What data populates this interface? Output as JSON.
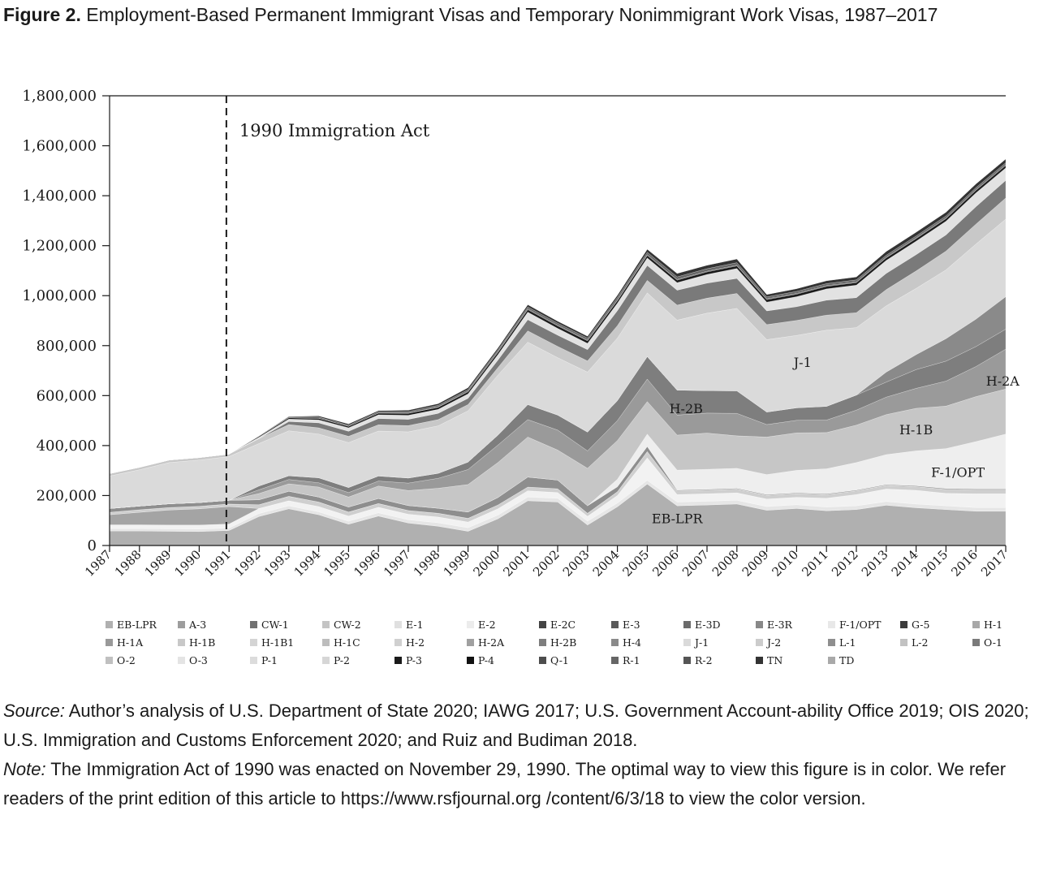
{
  "figure": {
    "label": "Figure 2.",
    "title": "Employment-Based Permanent Immigrant Visas and Temporary Nonimmigrant Work Visas, 1987–2017"
  },
  "chart_data": {
    "type": "area",
    "stacked": true,
    "categories": [
      "1987",
      "1988",
      "1989",
      "1990",
      "1991",
      "1992",
      "1993",
      "1994",
      "1995",
      "1996",
      "1997",
      "1998",
      "1999",
      "2000",
      "2001",
      "2002",
      "2003",
      "2004",
      "2005",
      "2006",
      "2007",
      "2008",
      "2009",
      "2010",
      "2011",
      "2012",
      "2013",
      "2014",
      "2015",
      "2016",
      "2017"
    ],
    "ylim": [
      0,
      1800000
    ],
    "yticks": [
      "0",
      "200,000",
      "400,000",
      "600,000",
      "800,000",
      "1,000,000",
      "1,200,000",
      "1,400,000",
      "1,600,000",
      "1,800,000"
    ],
    "grid": false,
    "legend_position": "bottom",
    "series": [
      {
        "name": "EB-LPR",
        "color": "#b0b0b0",
        "values": [
          58000,
          58000,
          57000,
          56000,
          60000,
          116000,
          147000,
          123000,
          85000,
          118000,
          90000,
          77000,
          57000,
          107000,
          179000,
          174000,
          82000,
          155000,
          246000,
          159000,
          162000,
          166000,
          141000,
          148000,
          139000,
          144000,
          161000,
          151000,
          144000,
          137000,
          137000
        ]
      },
      {
        "name": "E-1",
        "color": "#e6e6e6",
        "values": [
          10000,
          10000,
          10000,
          10000,
          10000,
          12000,
          12000,
          12000,
          12000,
          13000,
          13000,
          14000,
          14000,
          15000,
          15000,
          15000,
          15000,
          15000,
          15000,
          15000,
          15000,
          15000,
          15000,
          15000,
          15000,
          15000,
          15000,
          15000,
          15000,
          15000,
          15000
        ]
      },
      {
        "name": "E-2",
        "color": "#f2f2f2",
        "values": [
          15000,
          15000,
          15000,
          16000,
          16000,
          20000,
          20000,
          21000,
          21000,
          22000,
          22000,
          23000,
          23000,
          25000,
          25000,
          23000,
          20000,
          30000,
          90000,
          30000,
          30000,
          30000,
          30000,
          30000,
          35000,
          45000,
          50000,
          55000,
          50000,
          55000,
          55000
        ]
      },
      {
        "name": "H-1",
        "color": "#a4a4a4",
        "values": [
          40000,
          50000,
          60000,
          65000,
          70000,
          0,
          0,
          0,
          0,
          0,
          0,
          0,
          0,
          0,
          0,
          0,
          0,
          0,
          0,
          0,
          0,
          0,
          0,
          0,
          0,
          0,
          0,
          0,
          0,
          0,
          0
        ]
      },
      {
        "name": "H-2",
        "color": "#cfcfcf",
        "values": [
          10000,
          10000,
          10000,
          10000,
          10000,
          15000,
          18000,
          18000,
          16000,
          15000,
          15000,
          15000,
          15000,
          15000,
          15000,
          15000,
          12000,
          15000,
          25000,
          15000,
          15000,
          15000,
          15000,
          15000,
          15000,
          15000,
          15000,
          15000,
          15000,
          15000,
          15000
        ]
      },
      {
        "name": "E-2C",
        "color": "#444444",
        "values": [
          0,
          0,
          0,
          0,
          0,
          0,
          0,
          0,
          0,
          0,
          0,
          0,
          0,
          0,
          0,
          0,
          0,
          0,
          0,
          0,
          0,
          0,
          0,
          0,
          0,
          0,
          0,
          0,
          1000,
          1000,
          1000
        ]
      },
      {
        "name": "L-1",
        "color": "#8e8e8e",
        "values": [
          15000,
          15000,
          15000,
          15000,
          15000,
          20000,
          20000,
          20000,
          20000,
          20000,
          20000,
          20000,
          25000,
          30000,
          40000,
          35000,
          30000,
          20000,
          20000,
          3000,
          3000,
          3000,
          3000,
          3000,
          3000,
          3000,
          3000,
          3000,
          3000,
          3000,
          3000
        ]
      },
      {
        "name": "F-1/OPT",
        "color": "#eeeeee",
        "values": [
          0,
          0,
          0,
          0,
          0,
          0,
          0,
          0,
          0,
          0,
          0,
          0,
          0,
          0,
          0,
          0,
          0,
          30000,
          50000,
          80000,
          80000,
          80000,
          80000,
          90000,
          100000,
          110000,
          120000,
          140000,
          160000,
          190000,
          220000
        ]
      },
      {
        "name": "H-1B",
        "color": "#c6c6c6",
        "values": [
          0,
          0,
          0,
          0,
          0,
          25000,
          30000,
          40000,
          40000,
          50000,
          60000,
          80000,
          110000,
          140000,
          160000,
          120000,
          150000,
          155000,
          130000,
          140000,
          145000,
          130000,
          150000,
          150000,
          145000,
          150000,
          160000,
          170000,
          170000,
          180000,
          180000
        ]
      },
      {
        "name": "H-2A",
        "color": "#9a9a9a",
        "values": [
          0,
          0,
          0,
          0,
          0,
          15000,
          17000,
          17000,
          18000,
          20000,
          30000,
          40000,
          60000,
          70000,
          70000,
          80000,
          70000,
          80000,
          90000,
          80000,
          80000,
          90000,
          50000,
          50000,
          50000,
          60000,
          70000,
          80000,
          100000,
          120000,
          160000
        ]
      },
      {
        "name": "H-2B",
        "color": "#7e7e7e",
        "values": [
          0,
          0,
          0,
          0,
          0,
          15000,
          15000,
          20000,
          20000,
          20000,
          20000,
          20000,
          30000,
          40000,
          60000,
          60000,
          75000,
          80000,
          90000,
          100000,
          90000,
          90000,
          50000,
          50000,
          55000,
          60000,
          60000,
          75000,
          80000,
          80000,
          80000
        ]
      },
      {
        "name": "H-4",
        "color": "#8a8a8a",
        "values": [
          0,
          0,
          0,
          0,
          0,
          0,
          0,
          0,
          0,
          0,
          0,
          0,
          0,
          0,
          0,
          0,
          0,
          0,
          0,
          0,
          0,
          0,
          0,
          0,
          0,
          0,
          40000,
          60000,
          90000,
          110000,
          130000
        ]
      },
      {
        "name": "J-1",
        "color": "#dadada",
        "values": [
          130000,
          145000,
          165000,
          170000,
          175000,
          170000,
          180000,
          175000,
          180000,
          180000,
          185000,
          190000,
          205000,
          240000,
          250000,
          230000,
          240000,
          250000,
          255000,
          280000,
          310000,
          330000,
          290000,
          290000,
          305000,
          270000,
          265000,
          265000,
          275000,
          300000,
          310000
        ]
      },
      {
        "name": "L-2",
        "color": "#c8c8c8",
        "values": [
          10000,
          10000,
          10000,
          10000,
          10000,
          20000,
          25000,
          25000,
          25000,
          25000,
          25000,
          25000,
          25000,
          30000,
          45000,
          45000,
          45000,
          50000,
          50000,
          60000,
          60000,
          60000,
          60000,
          60000,
          60000,
          60000,
          65000,
          70000,
          75000,
          80000,
          85000
        ]
      },
      {
        "name": "O-1",
        "color": "#7a7a7a",
        "values": [
          0,
          0,
          0,
          0,
          0,
          0,
          12000,
          20000,
          20000,
          25000,
          25000,
          25000,
          25000,
          30000,
          45000,
          45000,
          45000,
          60000,
          60000,
          60000,
          60000,
          60000,
          55000,
          55000,
          60000,
          60000,
          65000,
          65000,
          65000,
          70000,
          70000
        ]
      },
      {
        "name": "P-1",
        "color": "#e2e2e2",
        "values": [
          0,
          0,
          0,
          0,
          0,
          5000,
          10000,
          12000,
          14000,
          15000,
          16000,
          16000,
          18000,
          22000,
          30000,
          27000,
          25000,
          30000,
          30000,
          30000,
          35000,
          40000,
          35000,
          40000,
          45000,
          50000,
          52000,
          54000,
          55000,
          55000,
          50000
        ]
      },
      {
        "name": "P-3",
        "color": "#1a1a1a",
        "values": [
          0,
          0,
          0,
          0,
          0,
          4000,
          5000,
          6000,
          6000,
          7000,
          8000,
          8000,
          8000,
          9000,
          10000,
          10000,
          10000,
          10000,
          10000,
          10000,
          10000,
          10000,
          10000,
          10000,
          10000,
          10000,
          10000,
          10000,
          10000,
          10000,
          10000
        ]
      },
      {
        "name": "Q-1",
        "color": "#4d4d4d",
        "values": [
          0,
          0,
          0,
          0,
          0,
          0,
          0,
          0,
          0,
          0,
          1000,
          2000,
          3000,
          3000,
          3000,
          3000,
          3000,
          3000,
          3000,
          3000,
          3000,
          3000,
          3000,
          3000,
          3000,
          3000,
          3000,
          3000,
          3000,
          3000,
          3000
        ]
      },
      {
        "name": "R-1",
        "color": "#666666",
        "values": [
          0,
          0,
          0,
          0,
          0,
          2000,
          4000,
          5000,
          5000,
          5000,
          6000,
          6000,
          6000,
          7000,
          8000,
          8000,
          8000,
          10000,
          10000,
          10000,
          10000,
          10000,
          8000,
          8000,
          8000,
          8000,
          8000,
          8000,
          8000,
          8000,
          8000
        ]
      },
      {
        "name": "TN",
        "color": "#333333",
        "values": [
          0,
          0,
          0,
          0,
          0,
          0,
          2000,
          5000,
          5000,
          5000,
          6000,
          7000,
          8000,
          8000,
          9000,
          8000,
          8000,
          9000,
          12000,
          14000,
          14000,
          15000,
          10000,
          11000,
          12000,
          12000,
          15000,
          15000,
          15000,
          15000,
          15000
        ]
      },
      {
        "name": "TD",
        "color": "#a9a9a9",
        "values": [
          0,
          0,
          0,
          0,
          0,
          0,
          0,
          0,
          0,
          0,
          0,
          0,
          0,
          0,
          0,
          0,
          0,
          0,
          0,
          0,
          0,
          0,
          0,
          0,
          0,
          0,
          0,
          0,
          0,
          0,
          0
        ]
      }
    ],
    "labels": [
      {
        "text": "EB-LPR",
        "x": "2006",
        "y": 90000
      },
      {
        "text": "F-1/OPT",
        "x": "2015.4",
        "y": 275000
      },
      {
        "text": "H-1B",
        "x": "2014",
        "y": 445000
      },
      {
        "text": "H-2A",
        "x": "2016.9",
        "y": 640000
      },
      {
        "text": "H-2B",
        "x": "2006.3",
        "y": 530000
      },
      {
        "text": "J-1",
        "x": "2010.2",
        "y": 715000
      }
    ],
    "annotation": {
      "text": "1990 Immigration Act",
      "x": "1990.91"
    },
    "legend_items": [
      {
        "name": "EB-LPR",
        "color": "#b0b0b0"
      },
      {
        "name": "A-3",
        "color": "#9d9d9d"
      },
      {
        "name": "CW-1",
        "color": "#717171"
      },
      {
        "name": "CW-2",
        "color": "#c4c4c4"
      },
      {
        "name": "E-1",
        "color": "#e0e0e0"
      },
      {
        "name": "E-2",
        "color": "#ececec"
      },
      {
        "name": "E-2C",
        "color": "#444444"
      },
      {
        "name": "E-3",
        "color": "#5a5a5a"
      },
      {
        "name": "E-3D",
        "color": "#6b6b6b"
      },
      {
        "name": "E-3R",
        "color": "#888888"
      },
      {
        "name": "F-1/OPT",
        "color": "#e8e8e8"
      },
      {
        "name": "G-5",
        "color": "#3c3c3c"
      },
      {
        "name": "H-1",
        "color": "#a8a8a8"
      },
      {
        "name": "H-1A",
        "color": "#999999"
      },
      {
        "name": "H-1B",
        "color": "#c8c8c8"
      },
      {
        "name": "H-1B1",
        "color": "#d4d4d4"
      },
      {
        "name": "H-1C",
        "color": "#bdbdbd"
      },
      {
        "name": "H-2",
        "color": "#d0d0d0"
      },
      {
        "name": "H-2A",
        "color": "#a0a0a0"
      },
      {
        "name": "H-2B",
        "color": "#7e7e7e"
      },
      {
        "name": "H-4",
        "color": "#8a8a8a"
      },
      {
        "name": "J-1",
        "color": "#dadada"
      },
      {
        "name": "J-2",
        "color": "#cccccc"
      },
      {
        "name": "L-1",
        "color": "#8e8e8e"
      },
      {
        "name": "L-2",
        "color": "#c2c2c2"
      },
      {
        "name": "O-1",
        "color": "#7a7a7a"
      },
      {
        "name": "O-2",
        "color": "#c0c0c0"
      },
      {
        "name": "O-3",
        "color": "#e4e4e4"
      },
      {
        "name": "P-1",
        "color": "#dcdcdc"
      },
      {
        "name": "P-2",
        "color": "#d6d6d6"
      },
      {
        "name": "P-3",
        "color": "#1a1a1a"
      },
      {
        "name": "P-4",
        "color": "#111111"
      },
      {
        "name": "Q-1",
        "color": "#4d4d4d"
      },
      {
        "name": "R-1",
        "color": "#666666"
      },
      {
        "name": "R-2",
        "color": "#555555"
      },
      {
        "name": "TN",
        "color": "#333333"
      },
      {
        "name": "TD",
        "color": "#a9a9a9"
      }
    ]
  },
  "notes": {
    "source_label": "Source:",
    "source_text": " Author’s analysis of U.S. Department of State 2020; IAWG 2017; U.S. Government Account-ability Office 2019; OIS 2020; U.S. Immigration and Customs Enforcement 2020; and Ruiz and Budiman 2018.",
    "note_label": "Note:",
    "note_text": " The Immigration Act of 1990 was enacted on November 29, 1990. The optimal way to view this figure is in color. We refer readers of the print edition of this article to https://www.rsfjournal.org /content/6/3/18 to view the color version."
  }
}
